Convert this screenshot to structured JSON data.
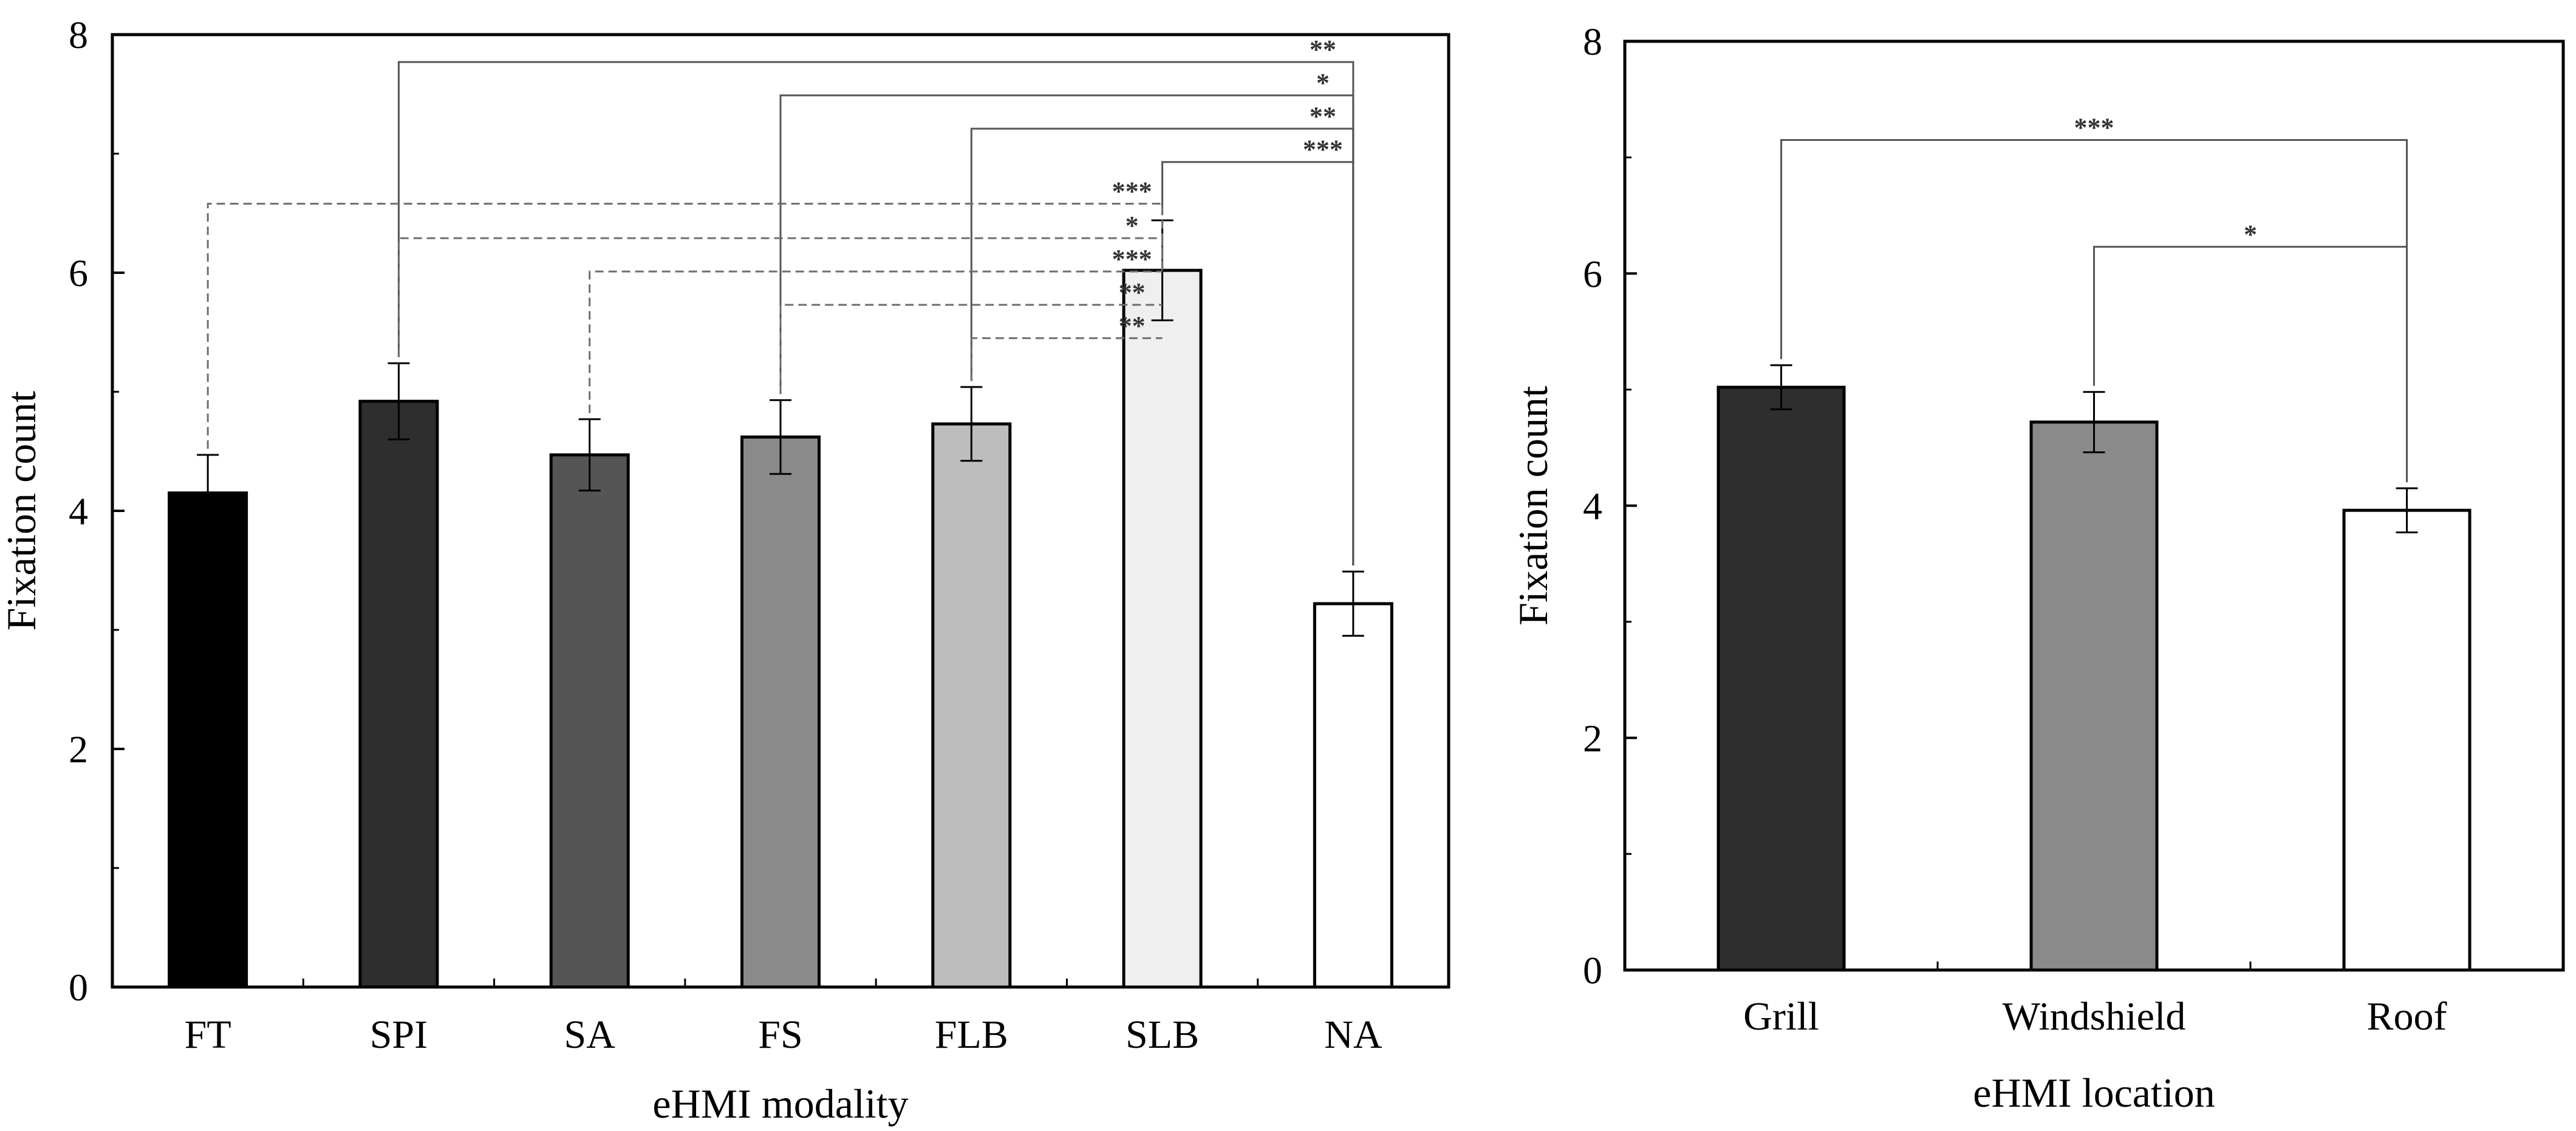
{
  "chart_data": [
    {
      "type": "bar",
      "id": "modality",
      "title": "",
      "xlabel": "eHMI modality",
      "ylabel": "Fixation count",
      "ylim": [
        0,
        8
      ],
      "yticks": [
        0,
        2,
        4,
        6,
        8
      ],
      "categories": [
        "FT",
        "SPI",
        "SA",
        "FS",
        "FLB",
        "SLB",
        "NA"
      ],
      "values": [
        4.15,
        4.92,
        4.47,
        4.62,
        4.73,
        6.02,
        3.22
      ],
      "errors": [
        0.32,
        0.32,
        0.3,
        0.31,
        0.31,
        0.42,
        0.27
      ],
      "colors": [
        "#000000",
        "#2e2e2e",
        "#555555",
        "#8a8a8a",
        "#bdbdbd",
        "#efefef",
        "#ffffff"
      ],
      "significance": [
        {
          "from": "SPI",
          "to": "NA",
          "label": "**",
          "style": "solid",
          "y": 7.77
        },
        {
          "from": "FS",
          "to": "NA",
          "label": "*",
          "style": "solid",
          "y": 7.49
        },
        {
          "from": "FLB",
          "to": "NA",
          "label": "**",
          "style": "solid",
          "y": 7.21
        },
        {
          "from": "SLB",
          "to": "NA",
          "label": "***",
          "style": "solid",
          "y": 6.93
        },
        {
          "from": "FT",
          "to": "SLB",
          "label": "***",
          "style": "dashed",
          "y": 6.58
        },
        {
          "from": "SPI",
          "to": "SLB",
          "label": "*",
          "style": "dashed",
          "y": 6.29
        },
        {
          "from": "SA",
          "to": "SLB",
          "label": "***",
          "style": "dashed",
          "y": 6.01
        },
        {
          "from": "FS",
          "to": "SLB",
          "label": "**",
          "style": "dashed",
          "y": 5.73
        },
        {
          "from": "FLB",
          "to": "SLB",
          "label": "**",
          "style": "dashed",
          "y": 5.45
        }
      ]
    },
    {
      "type": "bar",
      "id": "location",
      "title": "",
      "xlabel": "eHMI location",
      "ylabel": "Fixation count",
      "ylim": [
        0,
        8
      ],
      "yticks": [
        0,
        2,
        4,
        6,
        8
      ],
      "categories": [
        "Grill",
        "Windshield",
        "Roof"
      ],
      "values": [
        5.02,
        4.72,
        3.96
      ],
      "errors": [
        0.19,
        0.26,
        0.19
      ],
      "colors": [
        "#2e2e2e",
        "#8a8a8a",
        "#ffffff"
      ],
      "significance": [
        {
          "from": "Grill",
          "to": "Roof",
          "label": "***",
          "style": "solid",
          "y": 7.15
        },
        {
          "from": "Windshield",
          "to": "Roof",
          "label": "*",
          "style": "solid",
          "y": 6.23
        }
      ]
    }
  ]
}
